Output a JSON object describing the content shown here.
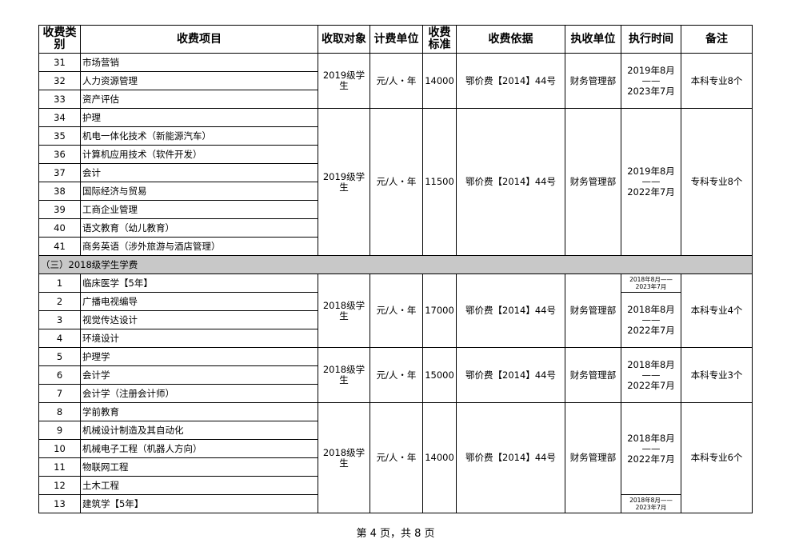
{
  "header": [
    "收费类别",
    "收费项目",
    "收取对象",
    "计费单位",
    "收费标准",
    "收费依据",
    "执收单位",
    "执行时间",
    "备注"
  ],
  "blocks": [
    {
      "items": [
        {
          "no": 31,
          "name": "市场营销"
        },
        {
          "no": 32,
          "name": "人力资源管理"
        },
        {
          "no": 33,
          "name": "资产评估"
        }
      ],
      "target": "2019级学生",
      "unit": "元/人・年",
      "amount": 14000,
      "basis": "鄂价费【2014】44号",
      "collector": "财务管理部",
      "periods": [
        {
          "span": 3,
          "lines": [
            "2019年8月",
            "——",
            "2023年7月"
          ]
        }
      ],
      "note": "本科专业8个"
    },
    {
      "items": [
        {
          "no": 34,
          "name": "护理"
        },
        {
          "no": 35,
          "name": "机电一体化技术（新能源汽车）"
        },
        {
          "no": 36,
          "name": "计算机应用技术（软件开发）"
        },
        {
          "no": 37,
          "name": "会计"
        },
        {
          "no": 38,
          "name": "国际经济与贸易"
        },
        {
          "no": 39,
          "name": "工商企业管理"
        },
        {
          "no": 40,
          "name": "语文教育（幼儿教育）"
        },
        {
          "no": 41,
          "name": "商务英语（涉外旅游与酒店管理）"
        }
      ],
      "target": "2019级学生",
      "unit": "元/人・年",
      "amount": 11500,
      "basis": "鄂价费【2014】44号",
      "collector": "财务管理部",
      "periods": [
        {
          "span": 8,
          "lines": [
            "2019年8月",
            "——",
            "2022年7月"
          ]
        }
      ],
      "note": "专科专业8个"
    },
    {
      "section": "（三）2018级学生学费"
    },
    {
      "items": [
        {
          "no": 1,
          "name": "临床医学【5年】"
        },
        {
          "no": 2,
          "name": "广播电视编导"
        },
        {
          "no": 3,
          "name": "视觉传达设计"
        },
        {
          "no": 4,
          "name": "环境设计"
        }
      ],
      "target": "2018级学生",
      "unit": "元/人・年",
      "amount": 17000,
      "basis": "鄂价费【2014】44号",
      "collector": "财务管理部",
      "periods": [
        {
          "span": 1,
          "size": "small",
          "lines": [
            "2018年8月——",
            "2023年7月"
          ]
        },
        {
          "span": 3,
          "lines": [
            "2018年8月",
            "——",
            "2022年7月"
          ]
        }
      ],
      "note": "本科专业4个"
    },
    {
      "items": [
        {
          "no": 5,
          "name": "护理学"
        },
        {
          "no": 6,
          "name": "会计学"
        },
        {
          "no": 7,
          "name": "会计学（注册会计师）"
        }
      ],
      "target": "2018级学生",
      "unit": "元/人・年",
      "amount": 15000,
      "basis": "鄂价费【2014】44号",
      "collector": "财务管理部",
      "periods": [
        {
          "span": 3,
          "lines": [
            "2018年8月",
            "——",
            "2022年7月"
          ]
        }
      ],
      "note": "本科专业3个"
    },
    {
      "items": [
        {
          "no": 8,
          "name": "学前教育"
        },
        {
          "no": 9,
          "name": "机械设计制造及其自动化"
        },
        {
          "no": 10,
          "name": "机械电子工程（机器人方向）"
        },
        {
          "no": 11,
          "name": "物联网工程"
        },
        {
          "no": 12,
          "name": "土木工程"
        },
        {
          "no": 13,
          "name": "建筑学【5年】"
        }
      ],
      "target": "2018级学生",
      "unit": "元/人・年",
      "amount": 14000,
      "basis": "鄂价费【2014】44号",
      "collector": "财务管理部",
      "periods": [
        {
          "span": 5,
          "lines": [
            "2018年8月",
            "——",
            "2022年7月"
          ]
        },
        {
          "span": 1,
          "size": "small",
          "lines": [
            "2018年8月——",
            "2023年7月"
          ]
        }
      ],
      "note": "本科专业6个"
    }
  ],
  "footer": "第 4 页，共 8 页"
}
